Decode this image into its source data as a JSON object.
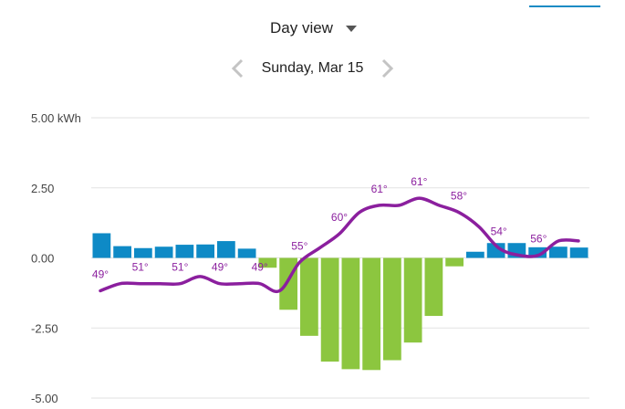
{
  "header": {
    "view_label": "Day view",
    "date_label": "Sunday, Mar 15"
  },
  "icons": {
    "view_dropdown": "chevron-down-icon",
    "previous_day": "chevron-left-icon",
    "next_day": "chevron-right-icon"
  },
  "colors": {
    "consumption": "#0e8ac6",
    "generation": "#8cc63f",
    "temperature": "#8b1f9e",
    "accent": "#1b8bc4"
  },
  "chart_data": {
    "type": "bar",
    "title": "",
    "xlabel": "",
    "ylabel": "",
    "ylim": [
      -5,
      5
    ],
    "y_ticks": [
      "5.00 kWh",
      "2.50",
      "0.00",
      "-2.50",
      "-5.00"
    ],
    "y_tick_values": [
      5,
      2.5,
      0,
      -2.5,
      -5
    ],
    "grid": true,
    "hours": [
      0,
      1,
      2,
      3,
      4,
      5,
      6,
      7,
      8,
      9,
      10,
      11,
      12,
      13,
      14,
      15,
      16,
      17,
      18,
      19,
      20,
      21,
      22,
      23
    ],
    "values": [
      0.88,
      0.42,
      0.35,
      0.4,
      0.47,
      0.48,
      0.6,
      0.33,
      -0.35,
      -1.85,
      -2.78,
      -3.7,
      -3.97,
      -4.0,
      -3.65,
      -3.02,
      -2.07,
      -0.3,
      0.22,
      0.53,
      0.53,
      0.38,
      0.4,
      0.37
    ],
    "temperature_series": [
      49,
      50,
      50,
      50,
      50,
      51,
      50,
      50,
      50,
      49,
      53,
      55,
      57,
      60,
      61,
      61,
      62,
      61,
      60,
      58,
      55,
      54,
      54,
      56,
      56
    ],
    "temperature_range": [
      44,
      66
    ],
    "temperature_labels": [
      {
        "hour": 0,
        "text": "49°"
      },
      {
        "hour": 2,
        "text": "51°"
      },
      {
        "hour": 4,
        "text": "51°"
      },
      {
        "hour": 6,
        "text": "49°"
      },
      {
        "hour": 8,
        "text": "49°"
      },
      {
        "hour": 10,
        "text": "55°"
      },
      {
        "hour": 12,
        "text": "60°"
      },
      {
        "hour": 14,
        "text": "61°"
      },
      {
        "hour": 16,
        "text": "61°"
      },
      {
        "hour": 18,
        "text": "58°"
      },
      {
        "hour": 20,
        "text": "54°"
      },
      {
        "hour": 22,
        "text": "56°"
      }
    ]
  }
}
